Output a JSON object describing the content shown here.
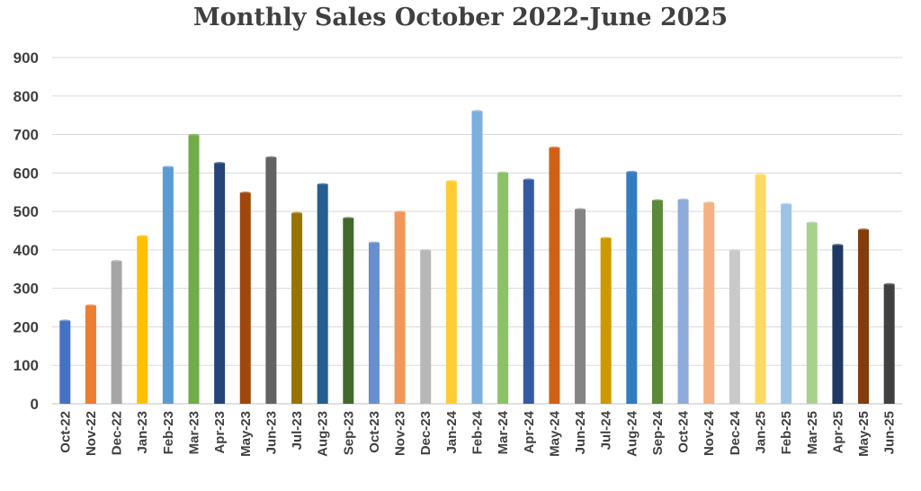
{
  "chart_data": {
    "type": "bar",
    "title": "Monthly Sales October 2022-June 2025",
    "xlabel": "",
    "ylabel": "",
    "ylim": [
      0,
      900
    ],
    "yticks": [
      0,
      100,
      200,
      300,
      400,
      500,
      600,
      700,
      800,
      900
    ],
    "grid": true,
    "legend": "none",
    "categories": [
      "Oct-22",
      "Nov-22",
      "Dec-22",
      "Jan-23",
      "Feb-23",
      "Mar-23",
      "Apr-23",
      "May-23",
      "Jun-23",
      "Jul-23",
      "Aug-23",
      "Sep-23",
      "Oct-23",
      "Nov-23",
      "Dec-23",
      "Jan-24",
      "Feb-24",
      "Mar-24",
      "Apr-24",
      "May-24",
      "Jun-24",
      "Jul-24",
      "Aug-24",
      "Sep-24",
      "Oct-24",
      "Nov-24",
      "Dec-24",
      "Jan-25",
      "Feb-25",
      "Mar-25",
      "Apr-25",
      "May-25",
      "Jun-25"
    ],
    "values": [
      215,
      255,
      370,
      435,
      615,
      698,
      625,
      548,
      640,
      495,
      570,
      482,
      418,
      498,
      398,
      578,
      760,
      600,
      582,
      665,
      505,
      430,
      602,
      528,
      530,
      522,
      398,
      595,
      518,
      470,
      412,
      452,
      310
    ],
    "colors": [
      "#4472c4",
      "#ed7d31",
      "#a5a5a5",
      "#ffc000",
      "#5b9bd5",
      "#70ad47",
      "#264478",
      "#9e480e",
      "#636363",
      "#997300",
      "#255e91",
      "#43682b",
      "#698ed0",
      "#f1975a",
      "#b7b7b7",
      "#ffcd33",
      "#7cafdd",
      "#8cc168",
      "#335aa1",
      "#d26012",
      "#848484",
      "#cc9a00",
      "#327dc2",
      "#5a8a39",
      "#8faadc",
      "#f4b183",
      "#c9c9c9",
      "#ffd966",
      "#9dc3e6",
      "#a9d18e",
      "#203864",
      "#843c0c",
      "#404040"
    ]
  }
}
